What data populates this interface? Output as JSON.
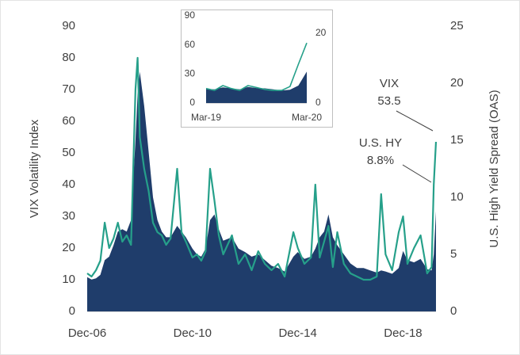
{
  "chart_data": [
    {
      "type": "line",
      "ylabel": "VIX Volatility Index",
      "y2label": "U.S. High Yield Spread (OAS)",
      "x": [
        "Dec-06",
        "Feb-07",
        "Apr-07",
        "Jun-07",
        "Aug-07",
        "Oct-07",
        "Dec-07",
        "Feb-08",
        "Apr-08",
        "Jun-08",
        "Aug-08",
        "Oct-08",
        "Nov-08",
        "Dec-08",
        "Feb-09",
        "Apr-09",
        "Jun-09",
        "Aug-09",
        "Oct-09",
        "Dec-09",
        "Feb-10",
        "May-10",
        "Jul-10",
        "Sep-10",
        "Dec-10",
        "Feb-11",
        "Apr-11",
        "Jun-11",
        "Aug-11",
        "Oct-11",
        "Dec-11",
        "Feb-12",
        "Jun-12",
        "Sep-12",
        "Dec-12",
        "Mar-13",
        "Jun-13",
        "Sep-13",
        "Dec-13",
        "Mar-14",
        "Jun-14",
        "Oct-14",
        "Dec-14",
        "Mar-15",
        "Jun-15",
        "Aug-15",
        "Oct-15",
        "Dec-15",
        "Feb-16",
        "Apr-16",
        "Jun-16",
        "Sep-16",
        "Dec-16",
        "Mar-17",
        "Jun-17",
        "Sep-17",
        "Dec-17",
        "Feb-18",
        "Apr-18",
        "Jul-18",
        "Oct-18",
        "Dec-18",
        "Feb-19",
        "May-19",
        "Aug-19",
        "Nov-19",
        "Jan-20",
        "Feb-20",
        "Mar-20"
      ],
      "series": [
        {
          "name": "U.S. HY",
          "color": "#1f3d6b",
          "style": "area",
          "axis": "y2",
          "values": [
            3.0,
            2.8,
            2.9,
            3.2,
            4.5,
            4.8,
            5.8,
            7.0,
            7.2,
            7.0,
            8.0,
            15,
            19,
            21,
            18,
            14,
            10,
            8,
            7,
            6.5,
            6.5,
            7.5,
            7,
            6.5,
            5.5,
            5,
            4.8,
            5.5,
            8,
            8.5,
            7.2,
            6.2,
            6.5,
            5.5,
            5.2,
            4.8,
            5.0,
            4.5,
            4.0,
            3.8,
            3.5,
            4.8,
            5.2,
            4.6,
            4.8,
            5.5,
            6.5,
            7,
            8.5,
            6.5,
            5.8,
            5,
            4.2,
            3.8,
            3.8,
            3.6,
            3.4,
            3.6,
            3.5,
            3.3,
            3.8,
            5.3,
            4.5,
            4.3,
            4.6,
            3.7,
            3.6,
            5,
            8.8
          ]
        },
        {
          "name": "VIX",
          "color": "#26a08a",
          "style": "line",
          "values": [
            12,
            11,
            13,
            16,
            28,
            20,
            23,
            28,
            22,
            24,
            21,
            70,
            80,
            55,
            45,
            38,
            28,
            25,
            24,
            21,
            23,
            45,
            25,
            22,
            17,
            18,
            16,
            19,
            45,
            35,
            24,
            18,
            24,
            15,
            18,
            13,
            19,
            15,
            13,
            15,
            11,
            25,
            20,
            15,
            17,
            40,
            17,
            22,
            27,
            14,
            25,
            15,
            12,
            11,
            10,
            10,
            11,
            37,
            18,
            13,
            25,
            30,
            15,
            20,
            24,
            12,
            14,
            40,
            53.5
          ]
        }
      ],
      "annotations": [
        "53.5",
        "8.8%"
      ],
      "xlim": [
        "Dec-06",
        "Mar-20"
      ],
      "xticks": [
        "Dec-06",
        "Dec-10",
        "Dec-14",
        "Dec-18"
      ],
      "ylim": [
        0,
        90
      ],
      "yticks": [
        0,
        10,
        20,
        30,
        40,
        50,
        60,
        70,
        80,
        90
      ],
      "y2lim": [
        0,
        25
      ],
      "y2ticks": [
        0,
        5,
        10,
        15,
        20,
        25
      ]
    },
    {
      "type": "line",
      "x": [
        "Mar-19",
        "Apr-19",
        "May-19",
        "Jun-19",
        "Jul-19",
        "Aug-19",
        "Sep-19",
        "Oct-19",
        "Nov-19",
        "Dec-19",
        "Jan-20",
        "Feb-20",
        "Mar-20"
      ],
      "series": [
        {
          "color": "#1f3d6b",
          "style": "area",
          "axis": "y2",
          "values": [
            4.0,
            3.9,
            4.5,
            4.2,
            3.9,
            4.6,
            4.3,
            4.2,
            3.9,
            3.6,
            3.8,
            5.0,
            9.0
          ]
        },
        {
          "color": "#26a08a",
          "style": "line",
          "values": [
            15,
            13,
            18,
            15,
            13,
            18,
            16,
            14,
            13,
            13,
            17,
            40,
            62
          ]
        }
      ],
      "xlim": [
        "Mar-19",
        "Mar-20"
      ],
      "xticks": [
        "Mar-19",
        "Mar-20"
      ],
      "ylim": [
        0,
        90
      ],
      "yticks": [
        0,
        30,
        60,
        90
      ],
      "y2lim": [
        0,
        25
      ],
      "y2ticks": [
        0,
        20
      ]
    }
  ]
}
